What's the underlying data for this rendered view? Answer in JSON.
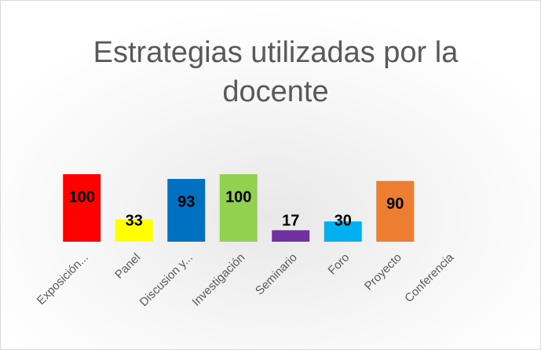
{
  "chart_data": {
    "type": "bar",
    "title": "Estrategias utilizadas por la docente",
    "categories": [
      "Exposición...",
      "Panel",
      "Discusion y...",
      "Investigación",
      "Seminario",
      "Foro",
      "Proyecto",
      "Conferencia"
    ],
    "values": [
      100,
      33,
      93,
      100,
      17,
      30,
      90,
      null
    ],
    "colors": [
      "#ff0000",
      "#ffff00",
      "#0070c0",
      "#92d050",
      "#7030a0",
      "#00b0f0",
      "#ed7d31",
      null
    ],
    "ylim": [
      0,
      100
    ]
  }
}
